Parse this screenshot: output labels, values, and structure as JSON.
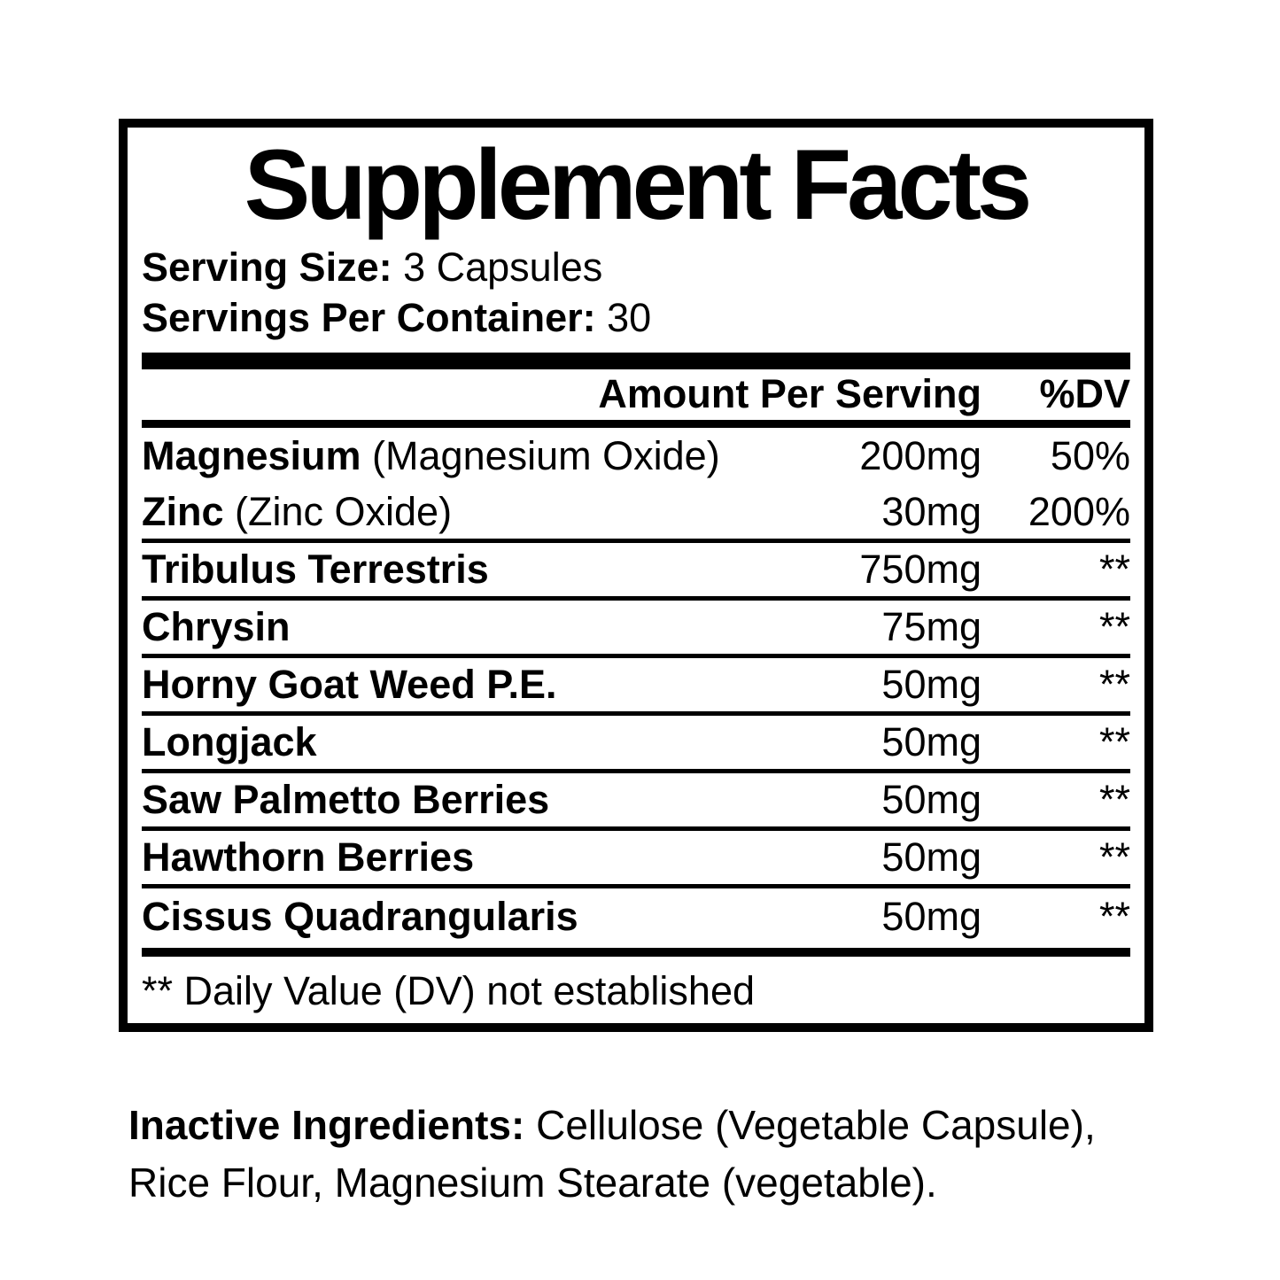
{
  "colors": {
    "text": "#000000",
    "background": "#ffffff"
  },
  "label": {
    "title": "Supplement Facts",
    "serving_size": {
      "label": "Serving Size:",
      "value": " 3 Capsules"
    },
    "servings_per_container": {
      "label": "Servings Per Container:",
      "value": " 30"
    },
    "columns": {
      "amount": "Amount Per Serving",
      "dv": "%DV"
    },
    "rows": [
      {
        "name": "Magnesium",
        "detail": " (Magnesium Oxide)",
        "amount": "200mg",
        "dv": "50%"
      },
      {
        "name": "Zinc",
        "detail": " (Zinc Oxide)",
        "amount": "30mg",
        "dv": "200%"
      },
      {
        "name": "Tribulus Terrestris",
        "detail": "",
        "amount": "750mg",
        "dv": "**"
      },
      {
        "name": "Chrysin",
        "detail": "",
        "amount": "75mg",
        "dv": "**"
      },
      {
        "name": "Horny Goat Weed P.E.",
        "detail": "",
        "amount": "50mg",
        "dv": "**"
      },
      {
        "name": "Longjack",
        "detail": "",
        "amount": "50mg",
        "dv": "**"
      },
      {
        "name": "Saw Palmetto Berries",
        "detail": "",
        "amount": "50mg",
        "dv": "**"
      },
      {
        "name": "Hawthorn Berries",
        "detail": "",
        "amount": "50mg",
        "dv": "**"
      },
      {
        "name": "Cissus Quadrangularis",
        "detail": "",
        "amount": "50mg",
        "dv": "**"
      }
    ],
    "footnote": "** Daily Value (DV) not established",
    "inactive": {
      "label": "Inactive Ingredients:",
      "line1_rest": " Cellulose (Vegetable Capsule),",
      "line2": "Rice Flour, Magnesium Stearate (vegetable)."
    }
  }
}
